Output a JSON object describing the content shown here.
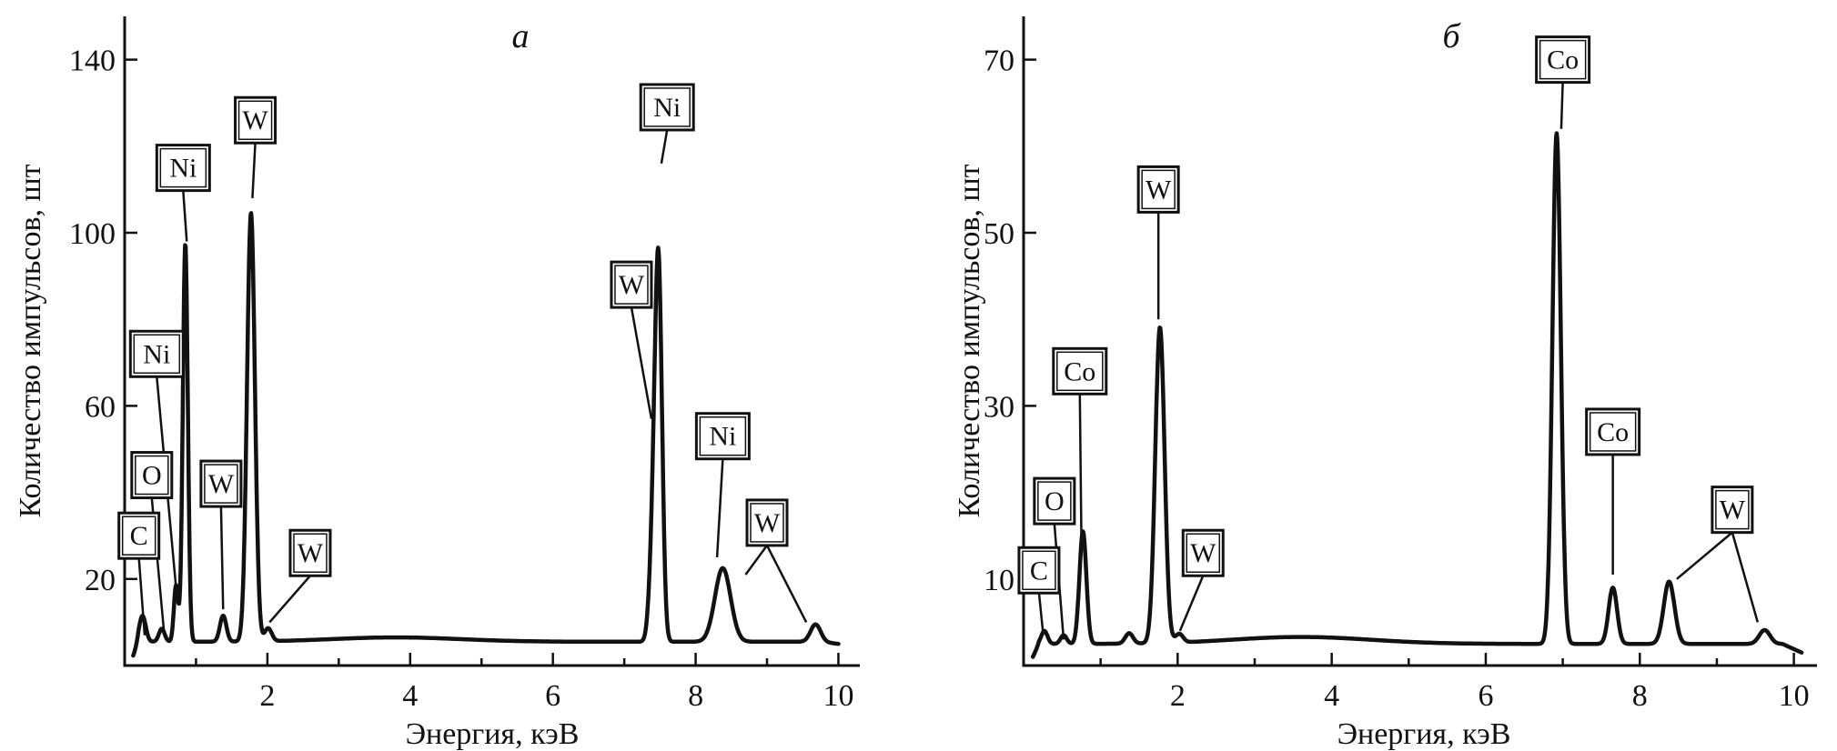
{
  "chart_data": [
    {
      "type": "line",
      "panel_letter": "а",
      "xlabel": "Энергия, кэВ",
      "ylabel": "Количество импульсов, шт",
      "xlim": [
        0,
        10.3
      ],
      "ylim": [
        0,
        150
      ],
      "xticks": [
        2,
        4,
        6,
        8,
        10
      ],
      "xtick_labels": [
        "2",
        "4",
        "6",
        "8",
        "10"
      ],
      "yticks": [
        20,
        60,
        100,
        140
      ],
      "ytick_labels": [
        "20",
        "60",
        "100",
        "140"
      ],
      "baseline": 5.5,
      "tail_end": [
        10.0,
        5
      ],
      "peaks": [
        {
          "x": 0.25,
          "h": 6,
          "w": 0.045
        },
        {
          "x": 0.52,
          "h": 3,
          "w": 0.04
        },
        {
          "x": 0.72,
          "h": 13,
          "w": 0.03
        },
        {
          "x": 0.85,
          "h": 92,
          "w": 0.035
        },
        {
          "x": 1.38,
          "h": 6,
          "w": 0.045
        },
        {
          "x": 1.77,
          "h": 99,
          "w": 0.055
        },
        {
          "x": 2.01,
          "h": 3,
          "w": 0.05
        },
        {
          "x": 3.8,
          "h": 1,
          "w": 0.9
        },
        {
          "x": 7.4,
          "h": 20,
          "w": 0.05
        },
        {
          "x": 7.48,
          "h": 85,
          "w": 0.05
        },
        {
          "x": 8.38,
          "h": 17,
          "w": 0.11
        },
        {
          "x": 9.68,
          "h": 4,
          "w": 0.07
        }
      ],
      "annotations": [
        {
          "label": "C",
          "box": [
            0.2,
            30
          ],
          "tip": [
            0.28,
            7
          ]
        },
        {
          "label": "O",
          "box": [
            0.38,
            44
          ],
          "tip": [
            0.55,
            8
          ]
        },
        {
          "label": "Ni",
          "box": [
            0.45,
            72
          ],
          "tip": [
            0.72,
            18
          ]
        },
        {
          "label": "Ni",
          "box": [
            0.82,
            115
          ],
          "tip": [
            0.87,
            98
          ]
        },
        {
          "label": "W",
          "box": [
            1.35,
            42
          ],
          "tip": [
            1.38,
            13
          ]
        },
        {
          "label": "W",
          "box": [
            1.83,
            126
          ],
          "tip": [
            1.79,
            108
          ]
        },
        {
          "label": "W",
          "box": [
            2.6,
            26
          ],
          "tip": [
            2.03,
            10
          ]
        },
        {
          "label": "W",
          "box": [
            7.1,
            88
          ],
          "tip": [
            7.38,
            57
          ]
        },
        {
          "label": "Ni",
          "box": [
            7.6,
            129
          ],
          "tip": [
            7.52,
            116
          ]
        },
        {
          "label": "Ni",
          "box": [
            8.38,
            53
          ],
          "tip": [
            8.3,
            25
          ]
        },
        {
          "label": "W",
          "box": [
            9.0,
            33
          ],
          "tip": [
            8.7,
            21
          ]
        },
        {
          "label": "W",
          "box": [
            9.0,
            33
          ],
          "tip": [
            9.55,
            10
          ]
        }
      ]
    },
    {
      "type": "line",
      "panel_letter": "б",
      "xlabel": "Энергия, кэВ",
      "ylabel": "Количество импульсов, шт",
      "xlim": [
        0,
        10.3
      ],
      "ylim": [
        0,
        75
      ],
      "xticks": [
        2,
        4,
        6,
        8,
        10
      ],
      "xtick_labels": [
        "2",
        "4",
        "6",
        "8",
        "10"
      ],
      "yticks": [
        10,
        30,
        50,
        70
      ],
      "ytick_labels": [
        "10",
        "30",
        "50",
        "70"
      ],
      "baseline": 2.5,
      "tail_end": [
        10.1,
        1.5
      ],
      "peaks": [
        {
          "x": 0.27,
          "h": 1.5,
          "w": 0.04
        },
        {
          "x": 0.52,
          "h": 1.0,
          "w": 0.04
        },
        {
          "x": 0.77,
          "h": 13,
          "w": 0.045
        },
        {
          "x": 1.37,
          "h": 1.2,
          "w": 0.05
        },
        {
          "x": 1.77,
          "h": 36.5,
          "w": 0.06
        },
        {
          "x": 2.02,
          "h": 1.0,
          "w": 0.05
        },
        {
          "x": 3.6,
          "h": 0.8,
          "w": 0.9
        },
        {
          "x": 6.92,
          "h": 59,
          "w": 0.055
        },
        {
          "x": 7.65,
          "h": 6.5,
          "w": 0.055
        },
        {
          "x": 8.38,
          "h": 7.2,
          "w": 0.07
        },
        {
          "x": 9.62,
          "h": 1.6,
          "w": 0.07
        }
      ],
      "annotations": [
        {
          "label": "C",
          "box": [
            0.2,
            11
          ],
          "tip": [
            0.25,
            4
          ]
        },
        {
          "label": "O",
          "box": [
            0.4,
            19
          ],
          "tip": [
            0.52,
            3
          ]
        },
        {
          "label": "Co",
          "box": [
            0.73,
            34
          ],
          "tip": [
            0.75,
            15
          ]
        },
        {
          "label": "W",
          "box": [
            1.75,
            55
          ],
          "tip": [
            1.75,
            40
          ]
        },
        {
          "label": "W",
          "box": [
            2.33,
            13
          ],
          "tip": [
            2.03,
            4
          ]
        },
        {
          "label": "Co",
          "box": [
            7.0,
            70
          ],
          "tip": [
            6.98,
            62
          ]
        },
        {
          "label": "Co",
          "box": [
            7.65,
            27
          ],
          "tip": [
            7.65,
            10.5
          ]
        },
        {
          "label": "W",
          "box": [
            9.2,
            18
          ],
          "tip": [
            8.48,
            10
          ]
        },
        {
          "label": "W",
          "box": [
            9.2,
            18
          ],
          "tip": [
            9.53,
            5
          ]
        }
      ]
    }
  ]
}
